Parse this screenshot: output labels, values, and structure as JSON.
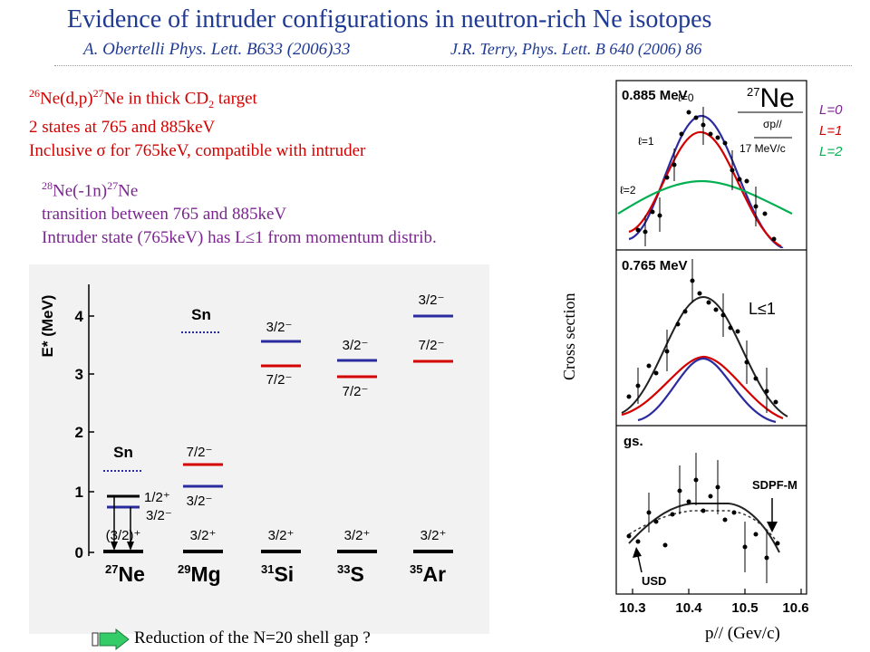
{
  "title": "Evidence of intruder configurations  in neutron-rich Ne isotopes",
  "refs": {
    "obertelli": "A. Obertelli Phys. Lett. B633 (2006)33",
    "terry": "J.R. Terry, Phys. Lett. B 640 (2006) 86"
  },
  "block1": {
    "line1_mass_a": "26",
    "line1_el_a": "Ne(d,p)",
    "line1_mass_b": "27",
    "line1_el_b": "Ne in thick CD",
    "line1_sub": "2",
    "line1_tail": " target",
    "line2": "2 states at 765 and 885keV",
    "line3_a": "Inclusive ",
    "line3_sigma": "σ",
    "line3_b": "  for 765keV, compatible with intruder"
  },
  "block2": {
    "line1_mass_a": "28",
    "line1_el_a": "Ne(-1n)",
    "line1_mass_b": "27",
    "line1_el_b": "Ne",
    "line2": "transition between 765 and 885keV",
    "line3": "Intruder state (765keV) has L≤1 from momentum distrib."
  },
  "legend": {
    "l0": "L=0",
    "l1": "L=1",
    "l2": "L=2"
  },
  "level_scheme": {
    "y_axis_label": "E* (MeV)",
    "y_ticks": [
      "0",
      "1",
      "2",
      "3",
      "4"
    ],
    "nuclei": [
      {
        "mass": "27",
        "el": "Ne",
        "gs": "(3/2)⁺",
        "sn": "Sn"
      },
      {
        "mass": "29",
        "el": "Mg",
        "gs": "3/2⁺",
        "sn": "Sn",
        "upper": "7/2⁻",
        "lower": "3/2⁻"
      },
      {
        "mass": "31",
        "el": "Si",
        "gs": "3/2⁺",
        "upper": "3/2⁻",
        "lower": "7/2⁻"
      },
      {
        "mass": "33",
        "el": "S",
        "gs": "3/2⁺",
        "upper": "3/2⁻",
        "lower": "7/2⁻"
      },
      {
        "mass": "35",
        "el": "Ar",
        "gs": "3/2⁺",
        "upper": "3/2⁻",
        "lower": "7/2⁻"
      }
    ],
    "ne_overlay": {
      "upper": "1/2⁺",
      "lower": "3/2⁻"
    }
  },
  "momentum_panels": {
    "panel1": {
      "label": "0.885 MeV",
      "nucleus_mass": "27",
      "nucleus_el": "Ne",
      "probe": "σp//",
      "arrow_label": "17 MeV/c",
      "l0": "ℓ=0",
      "l1": "ℓ=1",
      "l2": "ℓ=2"
    },
    "panel2": {
      "label": "0.765 MeV",
      "annotation": "L≤1"
    },
    "panel3": {
      "label": "gs.",
      "sdpf": "SDPF-M",
      "usd": "USD"
    },
    "x_ticks": [
      "10.3",
      "10.4",
      "10.5",
      "10.6"
    ],
    "ylabel": "Cross section",
    "xlabel": "p// (Gev/c)"
  },
  "bottom_note": "Reduction of the N=20 shell gap ?",
  "colors": {
    "title": "#1f3a93",
    "red": "#d40000",
    "purple": "#7b2590",
    "blue": "#2b2ba0",
    "green": "#00b050"
  }
}
